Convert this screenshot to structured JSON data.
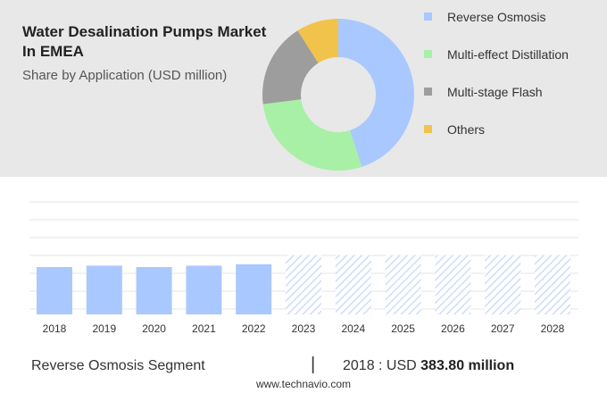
{
  "header": {
    "title": "Water Desalination Pumps Market In EMEA",
    "subtitle": "Share by Application (USD million)"
  },
  "footer": {
    "segment": "Reverse Osmosis Segment",
    "divider": "|",
    "year_prefix": "2018 : USD ",
    "value": "383.80 million"
  },
  "site": "www.technavio.com",
  "colors": {
    "reverse_osmosis": "#a9c8ff",
    "multi_effect": "#a8f0a6",
    "multi_stage": "#9d9d9d",
    "others": "#f2c34a",
    "forecast": "#cfdcfb",
    "top_panel": "#e8e8e8"
  },
  "chart_data": [
    {
      "type": "pie",
      "donut": true,
      "categories": [
        "Reverse Osmosis",
        "Multi-effect Distillation",
        "Multi-stage Flash",
        "Others"
      ],
      "values": [
        45,
        28,
        18,
        9
      ],
      "colors": [
        "#a9c8ff",
        "#a8f0a6",
        "#9d9d9d",
        "#f2c34a"
      ],
      "legend": "right"
    },
    {
      "type": "bar",
      "categories": [
        "2018",
        "2019",
        "2020",
        "2021",
        "2022",
        "2023",
        "2024",
        "2025",
        "2026",
        "2027",
        "2028"
      ],
      "values": [
        100,
        103,
        100,
        103,
        106,
        null,
        null,
        null,
        null,
        null,
        null
      ],
      "forecast_categories": [
        "2023",
        "2024",
        "2025",
        "2026",
        "2027",
        "2028"
      ],
      "forecast_values": [
        125,
        125,
        125,
        125,
        125,
        125
      ],
      "grid": true
    }
  ]
}
